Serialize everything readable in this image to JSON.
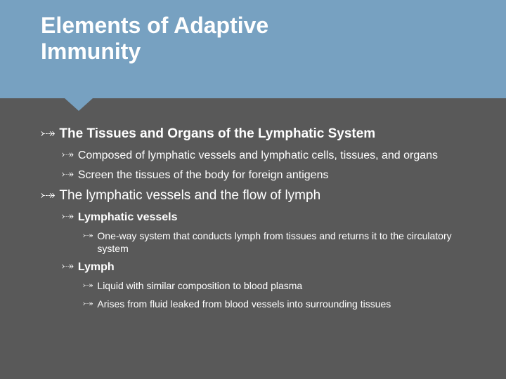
{
  "colors": {
    "background": "#595959",
    "band": "#77a1c1",
    "text": "#ffffff"
  },
  "typography": {
    "title_fontsize": 32,
    "lvl1_fontsize": 19,
    "lvl2_fontsize": 16,
    "lvl3_fontsize": 14,
    "font_family": "Arial",
    "bullet_font": "Segoe Script"
  },
  "bullet_glyph": "⤐",
  "title": {
    "line1": "Elements of Adaptive",
    "line2": "Immunity"
  },
  "b1": "The Tissues and Organs of the Lymphatic System",
  "b1_1": "Composed of lymphatic vessels and lymphatic cells, tissues, and organs",
  "b1_2": "Screen the tissues of the body for foreign antigens",
  "b2": "The lymphatic vessels and the flow of lymph",
  "b2_1": "Lymphatic vessels",
  "b2_1_1": "One-way system that conducts lymph from tissues and returns it to the circulatory system",
  "b2_2": "Lymph",
  "b2_2_1": "Liquid with similar composition to blood plasma",
  "b2_2_2": "Arises from fluid leaked from blood vessels into surrounding tissues"
}
